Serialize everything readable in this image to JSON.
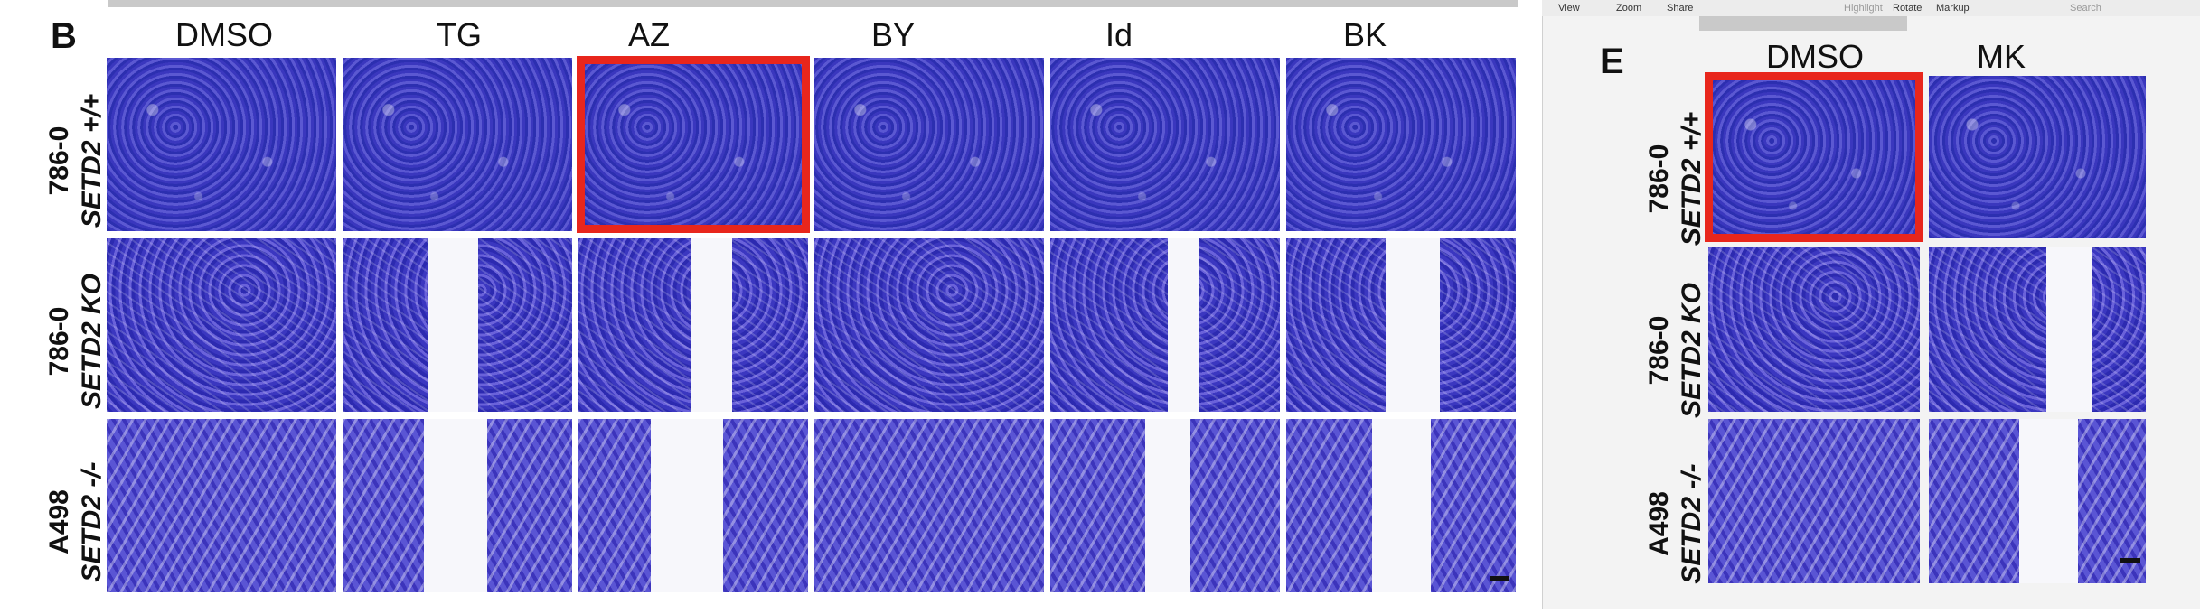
{
  "panel_b": {
    "letter": "B",
    "columns": [
      "DMSO",
      "TG",
      "AZ",
      "BY",
      "Id",
      "BK"
    ],
    "rows": [
      {
        "line": "786-0",
        "gene": "SETD2 +/+"
      },
      {
        "line": "786-0",
        "gene": "SETD2 KO"
      },
      {
        "line": "A498",
        "gene": "SETD2 -/-"
      }
    ]
  },
  "panel_e": {
    "letter": "E",
    "columns": [
      "DMSO",
      "MK"
    ],
    "rows": [
      {
        "line": "786-0",
        "gene": "SETD2 +/+"
      },
      {
        "line": "786-0",
        "gene": "SETD2 KO"
      },
      {
        "line": "A498",
        "gene": "SETD2 -/-"
      }
    ]
  },
  "viewer_toolbar": {
    "view": "View",
    "zoom": "Zoom",
    "share": "Share",
    "highlight": "Highlight",
    "rotate": "Rotate",
    "markup": "Markup",
    "search_placeholder": "Search"
  },
  "colors": {
    "stain": "#3b3abf",
    "highlight_frame": "#e8261c"
  }
}
